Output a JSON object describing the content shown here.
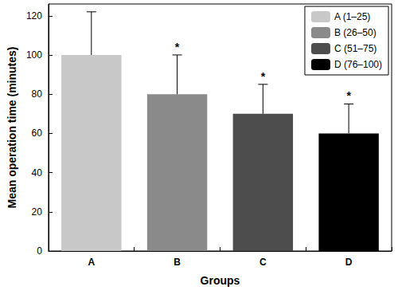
{
  "chart_data": {
    "type": "bar",
    "x_label": "Groups",
    "y_label": "Mean operation time (minutes)",
    "categories": [
      "A",
      "B",
      "C",
      "D"
    ],
    "series": [
      {
        "name": "A (1–25)",
        "color": "#c8c8c8",
        "values": [
          100,
          null,
          null,
          null
        ],
        "errors": [
          22,
          null,
          null,
          null
        ]
      },
      {
        "name": "B (26–50)",
        "color": "#8a8a8a",
        "values": [
          null,
          80,
          null,
          null
        ],
        "errors": [
          null,
          20,
          null,
          null
        ]
      },
      {
        "name": "C (51–75)",
        "color": "#4d4d4d",
        "values": [
          null,
          null,
          70,
          null
        ],
        "errors": [
          null,
          null,
          15,
          null
        ]
      },
      {
        "name": "D (76–100)",
        "color": "#000000",
        "values": [
          null,
          null,
          null,
          60
        ],
        "errors": [
          null,
          null,
          null,
          15
        ]
      }
    ],
    "annotations": [
      {
        "category": "B",
        "text": "*"
      },
      {
        "category": "C",
        "text": "*"
      },
      {
        "category": "D",
        "text": "*"
      }
    ],
    "stacked": true,
    "ylim": [
      0,
      126
    ],
    "yticks": [
      0,
      20,
      40,
      60,
      80,
      100,
      120
    ],
    "legend": "upper right",
    "grid": false
  }
}
